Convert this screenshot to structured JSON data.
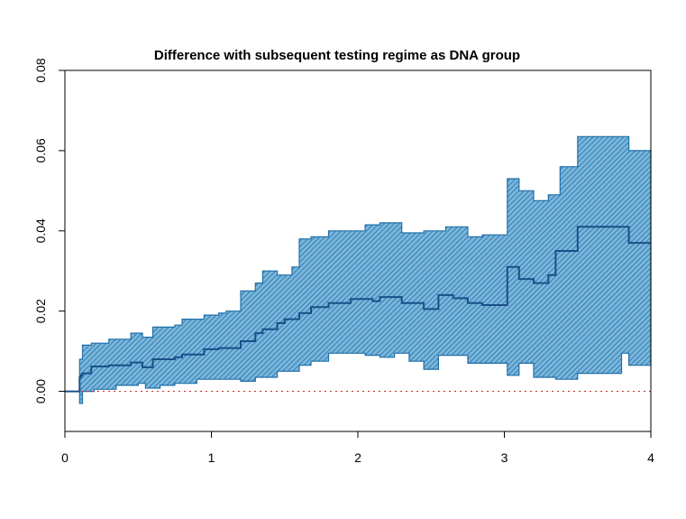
{
  "chart_data": {
    "type": "area",
    "title": "Difference with subsequent testing regime as DNA group",
    "xlabel": "",
    "ylabel": "",
    "xlim": [
      0,
      4
    ],
    "ylim": [
      -0.01,
      0.08
    ],
    "x_ticks": [
      0,
      1,
      2,
      3,
      4
    ],
    "x_tick_labels": [
      "0",
      "1",
      "2",
      "3",
      "4"
    ],
    "y_ticks": [
      0.0,
      0.02,
      0.04,
      0.06,
      0.08
    ],
    "y_tick_labels": [
      "0.00",
      "0.02",
      "0.04",
      "0.06",
      "0.08"
    ],
    "reference_line": {
      "y": 0,
      "style": "dotted",
      "color": "#cc3333"
    },
    "colors": {
      "band_fill": "#5a9fc8",
      "band_edge": "#1f6fa8",
      "estimate": "#1a4f8a"
    },
    "series": [
      {
        "name": "estimate",
        "x": [
          0,
          0.1,
          0.11,
          0.12,
          0.18,
          0.3,
          0.45,
          0.53,
          0.6,
          0.75,
          0.8,
          0.95,
          1.05,
          1.2,
          1.3,
          1.35,
          1.45,
          1.5,
          1.6,
          1.68,
          1.8,
          1.95,
          2.1,
          2.15,
          2.3,
          2.45,
          2.55,
          2.65,
          2.75,
          2.85,
          3.02,
          3.1,
          3.2,
          3.3,
          3.35,
          3.5,
          3.8,
          3.85,
          4.0
        ],
        "y": [
          0,
          0.0035,
          0.004,
          0.0045,
          0.0062,
          0.0065,
          0.0072,
          0.006,
          0.008,
          0.0085,
          0.0092,
          0.0105,
          0.0108,
          0.0125,
          0.0145,
          0.0155,
          0.017,
          0.018,
          0.0195,
          0.021,
          0.022,
          0.023,
          0.0225,
          0.0235,
          0.022,
          0.0205,
          0.024,
          0.0232,
          0.022,
          0.0215,
          0.031,
          0.028,
          0.027,
          0.029,
          0.035,
          0.041,
          0.041,
          0.037,
          0.037
        ]
      },
      {
        "name": "upper bound",
        "x": [
          0,
          0.1,
          0.12,
          0.18,
          0.3,
          0.45,
          0.53,
          0.6,
          0.75,
          0.8,
          0.95,
          1.05,
          1.1,
          1.2,
          1.3,
          1.35,
          1.45,
          1.55,
          1.6,
          1.68,
          1.8,
          2.05,
          2.15,
          2.3,
          2.45,
          2.6,
          2.75,
          2.85,
          3.02,
          3.1,
          3.2,
          3.3,
          3.38,
          3.5,
          3.8,
          3.85,
          4.0
        ],
        "y": [
          0,
          0.008,
          0.0115,
          0.012,
          0.013,
          0.0145,
          0.0135,
          0.016,
          0.0165,
          0.018,
          0.019,
          0.0195,
          0.02,
          0.025,
          0.027,
          0.03,
          0.029,
          0.031,
          0.038,
          0.0385,
          0.04,
          0.0415,
          0.042,
          0.0395,
          0.04,
          0.041,
          0.0385,
          0.039,
          0.053,
          0.05,
          0.0475,
          0.049,
          0.056,
          0.0635,
          0.0635,
          0.06,
          0.06
        ]
      },
      {
        "name": "lower bound",
        "x": [
          0,
          0.1,
          0.12,
          0.2,
          0.35,
          0.5,
          0.55,
          0.65,
          0.75,
          0.9,
          1.1,
          1.2,
          1.3,
          1.45,
          1.6,
          1.68,
          1.8,
          2.05,
          2.15,
          2.25,
          2.35,
          2.45,
          2.55,
          2.75,
          3.02,
          3.1,
          3.2,
          3.35,
          3.5,
          3.8,
          3.85,
          4.0
        ],
        "y": [
          0,
          -0.003,
          0.0,
          0.0005,
          0.0015,
          0.002,
          0.0008,
          0.0015,
          0.002,
          0.003,
          0.003,
          0.0025,
          0.0035,
          0.005,
          0.0065,
          0.0075,
          0.0095,
          0.009,
          0.0085,
          0.0095,
          0.0075,
          0.0055,
          0.009,
          0.007,
          0.004,
          0.007,
          0.0035,
          0.003,
          0.0045,
          0.0095,
          0.0065,
          0.0065
        ]
      }
    ]
  }
}
